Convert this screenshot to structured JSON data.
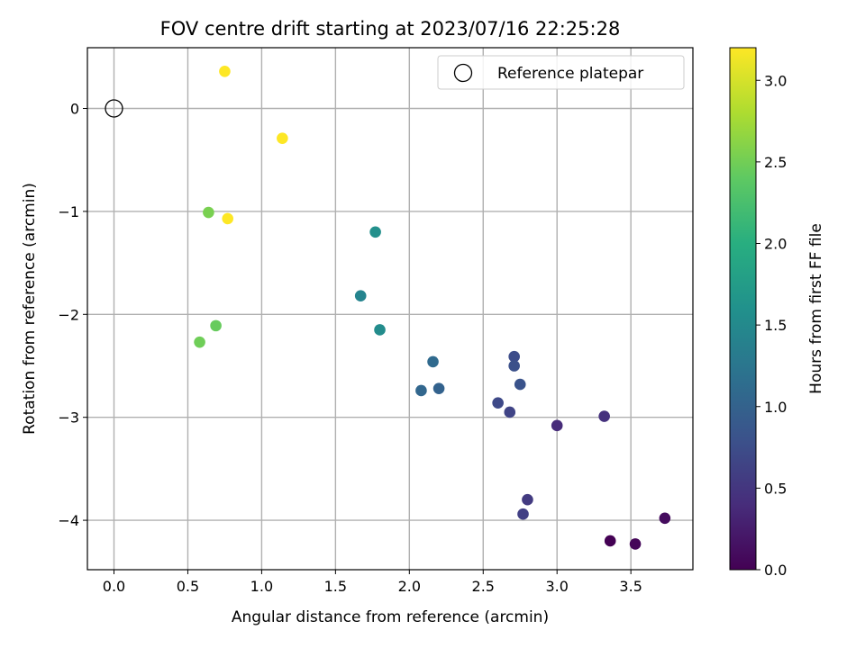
{
  "chart_data": {
    "type": "scatter",
    "title": "FOV centre drift starting at 2023/07/16 22:25:28",
    "xlabel": "Angular distance from reference (arcmin)",
    "ylabel": "Rotation from reference (arcmin)",
    "xlim": [
      -0.18,
      3.92
    ],
    "ylim": [
      -4.48,
      0.59
    ],
    "xticks": [
      0.0,
      0.5,
      1.0,
      1.5,
      2.0,
      2.5,
      3.0,
      3.5
    ],
    "xtick_labels": [
      "0.0",
      "0.5",
      "1.0",
      "1.5",
      "2.0",
      "2.5",
      "3.0",
      "3.5"
    ],
    "yticks": [
      0,
      -1,
      -2,
      -3,
      -4
    ],
    "ytick_labels": [
      "0",
      "−1",
      "−2",
      "−3",
      "−4"
    ],
    "grid": true,
    "legend": {
      "placement": "top-right",
      "entries": [
        {
          "label": "Reference platepar",
          "marker": "open-circle"
        }
      ]
    },
    "reference_point": {
      "x": 0.0,
      "y": 0.0
    },
    "colorbar": {
      "label": "Hours from first FF file",
      "colormap": "viridis",
      "range": [
        0.0,
        3.2
      ],
      "ticks": [
        0.0,
        0.5,
        1.0,
        1.5,
        2.0,
        2.5,
        3.0
      ],
      "tick_labels": [
        "0.0",
        "0.5",
        "1.0",
        "1.5",
        "2.0",
        "2.5",
        "3.0"
      ]
    },
    "points": [
      {
        "x": 3.36,
        "y": -4.2,
        "c": 0.0
      },
      {
        "x": 3.53,
        "y": -4.23,
        "c": 0.05
      },
      {
        "x": 3.73,
        "y": -3.98,
        "c": 0.1
      },
      {
        "x": 3.0,
        "y": -3.08,
        "c": 0.4
      },
      {
        "x": 3.32,
        "y": -2.99,
        "c": 0.45
      },
      {
        "x": 2.8,
        "y": -3.8,
        "c": 0.55
      },
      {
        "x": 2.77,
        "y": -3.94,
        "c": 0.6
      },
      {
        "x": 2.68,
        "y": -2.95,
        "c": 0.65
      },
      {
        "x": 2.6,
        "y": -2.86,
        "c": 0.7
      },
      {
        "x": 2.71,
        "y": -2.41,
        "c": 0.75
      },
      {
        "x": 2.71,
        "y": -2.5,
        "c": 0.78
      },
      {
        "x": 2.75,
        "y": -2.68,
        "c": 0.82
      },
      {
        "x": 2.2,
        "y": -2.72,
        "c": 1.0
      },
      {
        "x": 2.08,
        "y": -2.74,
        "c": 1.05
      },
      {
        "x": 2.16,
        "y": -2.46,
        "c": 1.1
      },
      {
        "x": 1.67,
        "y": -1.82,
        "c": 1.45
      },
      {
        "x": 1.8,
        "y": -2.15,
        "c": 1.55
      },
      {
        "x": 1.77,
        "y": -1.2,
        "c": 1.6
      },
      {
        "x": 0.69,
        "y": -2.11,
        "c": 2.45
      },
      {
        "x": 0.58,
        "y": -2.27,
        "c": 2.5
      },
      {
        "x": 0.64,
        "y": -1.01,
        "c": 2.55
      },
      {
        "x": 0.77,
        "y": -1.07,
        "c": 3.2
      },
      {
        "x": 1.14,
        "y": -0.29,
        "c": 3.2
      },
      {
        "x": 0.75,
        "y": 0.36,
        "c": 3.2
      }
    ]
  }
}
